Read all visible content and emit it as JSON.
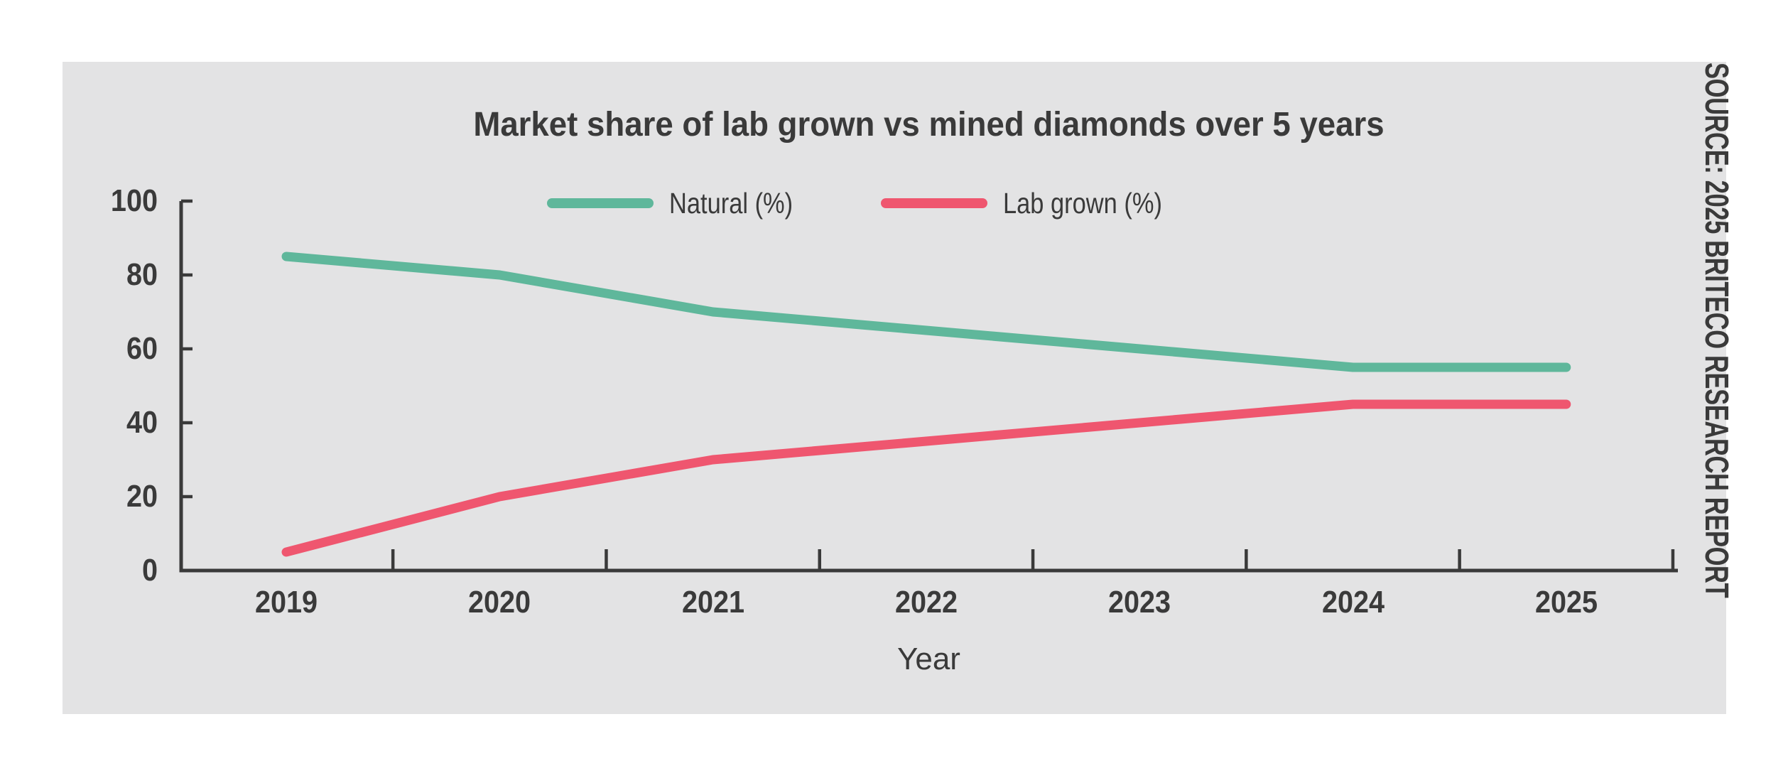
{
  "source_note": "SOURCE: 2025 BRITECO RESEARCH REPORT",
  "colors": {
    "page_background": "#ffffff",
    "panel_background": "#e3e3e4",
    "axis": "#3a3a3a",
    "text": "#3a3a3a",
    "natural_line": "#5fb79b",
    "lab_grown_line": "#ef566f"
  },
  "chart_data": {
    "type": "line",
    "title": "Market share of lab grown vs mined diamonds over 5 years",
    "xlabel": "Year",
    "ylabel": "",
    "categories": [
      "2019",
      "2020",
      "2021",
      "2022",
      "2023",
      "2024",
      "2025"
    ],
    "series": [
      {
        "name": "Natural (%)",
        "color": "#5fb79b",
        "values": [
          85,
          80,
          70,
          65,
          60,
          55,
          55
        ]
      },
      {
        "name": "Lab grown (%)",
        "color": "#ef566f",
        "values": [
          5,
          20,
          30,
          35,
          40,
          45,
          45
        ]
      }
    ],
    "ylim": [
      0,
      100
    ],
    "yticks": [
      0,
      20,
      40,
      60,
      80,
      100
    ],
    "grid": false,
    "legend_position": "top",
    "tick_style": "inside"
  }
}
